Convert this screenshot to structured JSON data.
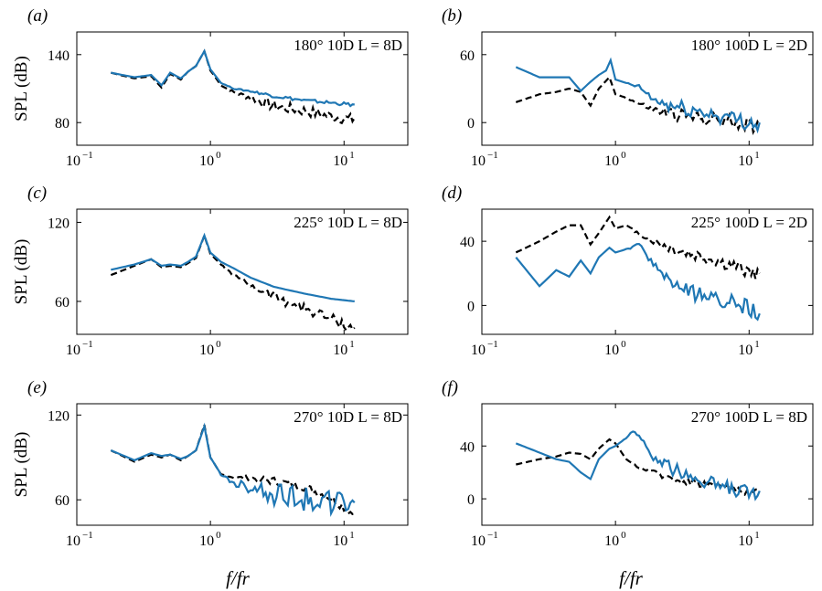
{
  "figure": {
    "xlabel": "f/fr",
    "ylabel": "SPL (dB)",
    "line_colors": {
      "model": "#1f77b4",
      "reference": "#000000"
    }
  },
  "chart_data": [
    {
      "panel": "(a)",
      "type": "line",
      "annotation": "180°  10D  L = 8D",
      "xscale": "log",
      "xlim": [
        0.1,
        30
      ],
      "ylim": [
        60,
        160
      ],
      "xticks": [
        {
          "v": 0.1,
          "base": "10",
          "exp": "−1"
        },
        {
          "v": 1,
          "base": "10",
          "exp": "0"
        },
        {
          "v": 10,
          "base": "10",
          "exp": "1"
        }
      ],
      "yticks": [
        80,
        140
      ],
      "ylabel": "SPL (dB)",
      "series": [
        {
          "style": "dashed",
          "color": "#000000",
          "noise": 5,
          "x": [
            0.18,
            0.27,
            0.36,
            0.43,
            0.5,
            0.6,
            0.68,
            0.78,
            0.9,
            1.0,
            1.2,
            1.5,
            2.0,
            3.0,
            5.0,
            8.0,
            12.0
          ],
          "y": [
            124,
            119,
            121,
            111,
            123,
            118,
            125,
            130,
            143,
            126,
            113,
            107,
            103,
            96,
            92,
            87,
            84
          ]
        },
        {
          "style": "solid",
          "color": "#1f77b4",
          "noise": 1.5,
          "x": [
            0.18,
            0.27,
            0.36,
            0.43,
            0.5,
            0.6,
            0.68,
            0.78,
            0.9,
            1.0,
            1.2,
            1.5,
            2.0,
            3.0,
            5.0,
            8.0,
            12.0
          ],
          "y": [
            124,
            120,
            122,
            113,
            124,
            119,
            125,
            130,
            143,
            127,
            115,
            110,
            108,
            104,
            100,
            98,
            96
          ]
        }
      ]
    },
    {
      "panel": "(b)",
      "type": "line",
      "annotation": "180°  100D  L = 2D",
      "xscale": "log",
      "xlim": [
        0.1,
        30
      ],
      "ylim": [
        -20,
        80
      ],
      "xticks": [
        {
          "v": 0.1,
          "base": "10",
          "exp": "−1"
        },
        {
          "v": 1,
          "base": "10",
          "exp": "0"
        },
        {
          "v": 10,
          "base": "10",
          "exp": "1"
        }
      ],
      "yticks": [
        0,
        60
      ],
      "ylabel": "",
      "series": [
        {
          "style": "dashed",
          "color": "#000000",
          "noise": 6,
          "x": [
            0.18,
            0.27,
            0.36,
            0.45,
            0.55,
            0.65,
            0.75,
            0.9,
            1.0,
            1.2,
            1.5,
            2.0,
            3.0,
            5.0,
            8.0,
            12.0
          ],
          "y": [
            18,
            25,
            27,
            30,
            27,
            15,
            30,
            40,
            25,
            22,
            17,
            12,
            8,
            5,
            2,
            -2
          ]
        },
        {
          "style": "solid",
          "color": "#1f77b4",
          "noise": 7,
          "x": [
            0.18,
            0.27,
            0.36,
            0.45,
            0.55,
            0.65,
            0.75,
            0.85,
            0.92,
            1.0,
            1.2,
            1.5,
            2.0,
            3.0,
            5.0,
            8.0,
            12.0
          ],
          "y": [
            49,
            40,
            40,
            40,
            28,
            36,
            42,
            46,
            55,
            38,
            35,
            32,
            20,
            15,
            10,
            5,
            0
          ]
        }
      ]
    },
    {
      "panel": "(c)",
      "type": "line",
      "annotation": "225°  10D  L = 8D",
      "xscale": "log",
      "xlim": [
        0.1,
        30
      ],
      "ylim": [
        35,
        130
      ],
      "xticks": [
        {
          "v": 0.1,
          "base": "10",
          "exp": "−1"
        },
        {
          "v": 1,
          "base": "10",
          "exp": "0"
        },
        {
          "v": 10,
          "base": "10",
          "exp": "1"
        }
      ],
      "yticks": [
        60,
        120
      ],
      "ylabel": "SPL (dB)",
      "series": [
        {
          "style": "dashed",
          "color": "#000000",
          "noise": 4,
          "x": [
            0.18,
            0.27,
            0.36,
            0.43,
            0.5,
            0.6,
            0.68,
            0.78,
            0.9,
            1.0,
            1.2,
            1.5,
            2.0,
            3.0,
            5.0,
            8.0,
            12.0
          ],
          "y": [
            80,
            87,
            92,
            86,
            87,
            86,
            89,
            93,
            110,
            96,
            88,
            80,
            73,
            65,
            56,
            48,
            40
          ]
        },
        {
          "style": "solid",
          "color": "#1f77b4",
          "noise": 0,
          "x": [
            0.18,
            0.27,
            0.36,
            0.43,
            0.5,
            0.6,
            0.68,
            0.78,
            0.9,
            1.0,
            1.2,
            1.5,
            2.0,
            3.0,
            5.0,
            8.0,
            12.0
          ],
          "y": [
            84,
            88,
            92,
            87,
            88,
            87,
            90,
            94,
            110,
            97,
            90,
            85,
            78,
            71,
            66,
            62,
            60
          ]
        }
      ]
    },
    {
      "panel": "(d)",
      "type": "line",
      "annotation": "225°  100D  L = 2D",
      "xscale": "log",
      "xlim": [
        0.1,
        30
      ],
      "ylim": [
        -18,
        60
      ],
      "xticks": [
        {
          "v": 0.1,
          "base": "10",
          "exp": "−1"
        },
        {
          "v": 1,
          "base": "10",
          "exp": "0"
        },
        {
          "v": 10,
          "base": "10",
          "exp": "1"
        }
      ],
      "yticks": [
        0,
        40
      ],
      "ylabel": "",
      "series": [
        {
          "style": "dashed",
          "color": "#000000",
          "noise": 4,
          "x": [
            0.18,
            0.27,
            0.36,
            0.45,
            0.55,
            0.65,
            0.75,
            0.9,
            1.0,
            1.2,
            1.5,
            2.0,
            3.0,
            5.0,
            8.0,
            12.0
          ],
          "y": [
            33,
            40,
            46,
            50,
            50,
            38,
            45,
            55,
            48,
            50,
            45,
            40,
            35,
            30,
            25,
            20
          ]
        },
        {
          "style": "solid",
          "color": "#1f77b4",
          "noise": 5,
          "x": [
            0.18,
            0.27,
            0.36,
            0.45,
            0.55,
            0.65,
            0.75,
            0.9,
            1.0,
            1.2,
            1.5,
            2.0,
            3.0,
            5.0,
            8.0,
            12.0
          ],
          "y": [
            30,
            12,
            22,
            18,
            28,
            20,
            30,
            36,
            33,
            35,
            38,
            25,
            12,
            6,
            4,
            -5
          ]
        }
      ]
    },
    {
      "panel": "(e)",
      "type": "line",
      "annotation": "270°  10D  L = 8D",
      "xscale": "log",
      "xlim": [
        0.1,
        30
      ],
      "ylim": [
        42,
        128
      ],
      "xticks": [
        {
          "v": 0.1,
          "base": "10",
          "exp": "−1"
        },
        {
          "v": 1,
          "base": "10",
          "exp": "0"
        },
        {
          "v": 10,
          "base": "10",
          "exp": "1"
        }
      ],
      "yticks": [
        60,
        120
      ],
      "ylabel": "SPL (dB)",
      "series": [
        {
          "style": "dashed",
          "color": "#000000",
          "noise": 3,
          "x": [
            0.18,
            0.27,
            0.36,
            0.43,
            0.5,
            0.6,
            0.68,
            0.78,
            0.9,
            1.0,
            1.2,
            1.5,
            2.0,
            3.0,
            5.0,
            8.0,
            12.0
          ],
          "y": [
            95,
            87,
            92,
            90,
            92,
            88,
            91,
            95,
            113,
            90,
            78,
            76,
            76,
            74,
            70,
            62,
            50
          ]
        },
        {
          "style": "solid",
          "color": "#1f77b4",
          "noise": 9,
          "x": [
            0.18,
            0.27,
            0.36,
            0.43,
            0.5,
            0.6,
            0.68,
            0.78,
            0.9,
            1.0,
            1.2,
            1.5,
            2.0,
            3.0,
            5.0,
            8.0,
            12.0
          ],
          "y": [
            95,
            88,
            93,
            91,
            92,
            89,
            91,
            95,
            112,
            90,
            78,
            72,
            70,
            68,
            64,
            60,
            58
          ]
        }
      ]
    },
    {
      "panel": "(f)",
      "type": "line",
      "annotation": "270°  100D  L = 8D",
      "xscale": "log",
      "xlim": [
        0.1,
        30
      ],
      "ylim": [
        -20,
        72
      ],
      "xticks": [
        {
          "v": 0.1,
          "base": "10",
          "exp": "−1"
        },
        {
          "v": 1,
          "base": "10",
          "exp": "0"
        },
        {
          "v": 10,
          "base": "10",
          "exp": "1"
        }
      ],
      "yticks": [
        0,
        40
      ],
      "ylabel": "",
      "series": [
        {
          "style": "dashed",
          "color": "#000000",
          "noise": 3,
          "x": [
            0.18,
            0.27,
            0.36,
            0.45,
            0.55,
            0.65,
            0.75,
            0.9,
            1.0,
            1.2,
            1.5,
            2.0,
            3.0,
            5.0,
            8.0,
            12.0
          ],
          "y": [
            26,
            30,
            32,
            35,
            34,
            30,
            38,
            45,
            42,
            30,
            24,
            20,
            15,
            12,
            8,
            5
          ]
        },
        {
          "style": "solid",
          "color": "#1f77b4",
          "noise": 5,
          "x": [
            0.18,
            0.27,
            0.36,
            0.45,
            0.55,
            0.65,
            0.75,
            0.9,
            1.0,
            1.2,
            1.35,
            1.5,
            2.0,
            3.0,
            5.0,
            8.0,
            12.0
          ],
          "y": [
            42,
            35,
            30,
            28,
            20,
            15,
            30,
            38,
            40,
            46,
            52,
            48,
            30,
            22,
            14,
            8,
            6
          ]
        }
      ]
    }
  ]
}
